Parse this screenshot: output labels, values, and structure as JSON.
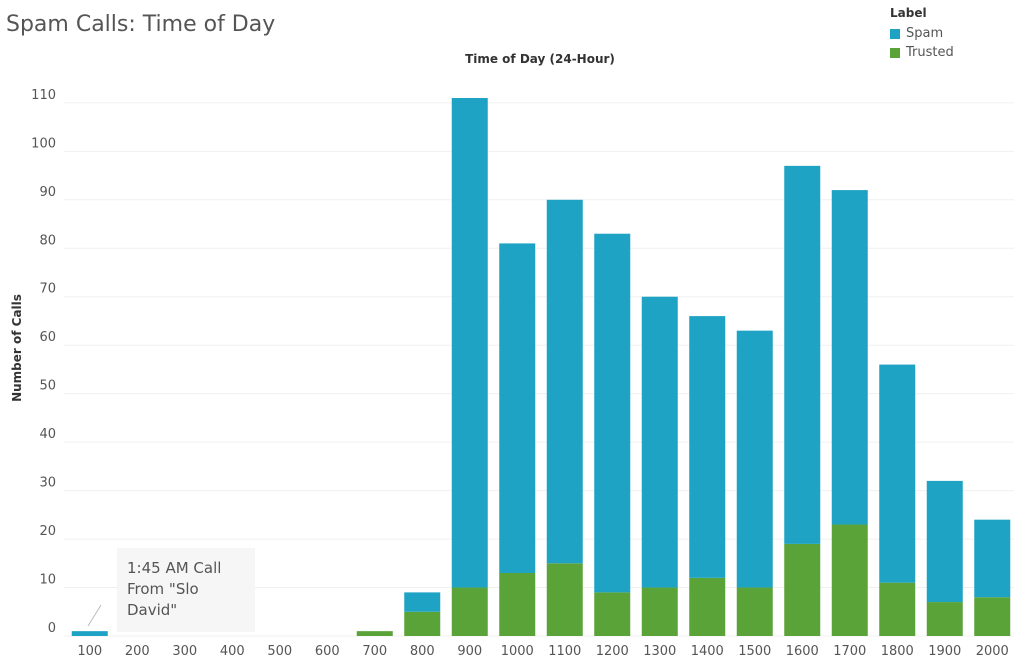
{
  "chart_data": {
    "type": "bar",
    "stacked": true,
    "title": "Spam Calls: Time of Day",
    "xlabel": "Time of Day (24-Hour)",
    "ylabel": "Number of Calls",
    "categories": [
      "100",
      "200",
      "300",
      "400",
      "500",
      "600",
      "700",
      "800",
      "900",
      "1000",
      "1100",
      "1200",
      "1300",
      "1400",
      "1500",
      "1600",
      "1700",
      "1800",
      "1900",
      "2000"
    ],
    "series": [
      {
        "name": "Trusted",
        "color": "#5aa339",
        "values": [
          0,
          0,
          0,
          0,
          0,
          0,
          1,
          5,
          10,
          13,
          15,
          9,
          10,
          12,
          10,
          19,
          23,
          11,
          7,
          8
        ]
      },
      {
        "name": "Spam",
        "color": "#1fa3c4",
        "values": [
          1,
          0,
          0,
          0,
          0,
          0,
          0,
          4,
          101,
          68,
          75,
          74,
          60,
          54,
          53,
          78,
          69,
          45,
          25,
          16
        ]
      }
    ],
    "ylim": [
      0,
      111
    ],
    "yticks": [
      0,
      10,
      20,
      30,
      40,
      50,
      60,
      70,
      80,
      90,
      100,
      110
    ],
    "grid": true,
    "legend": {
      "title": "Label",
      "placement": "top-right",
      "items": [
        {
          "label": "Spam",
          "color": "#1fa3c4"
        },
        {
          "label": "Trusted",
          "color": "#5aa339"
        }
      ]
    },
    "annotation": {
      "text": "1:45 AM Call\nFrom \"Slo\nDavid\"",
      "category": "100"
    }
  }
}
